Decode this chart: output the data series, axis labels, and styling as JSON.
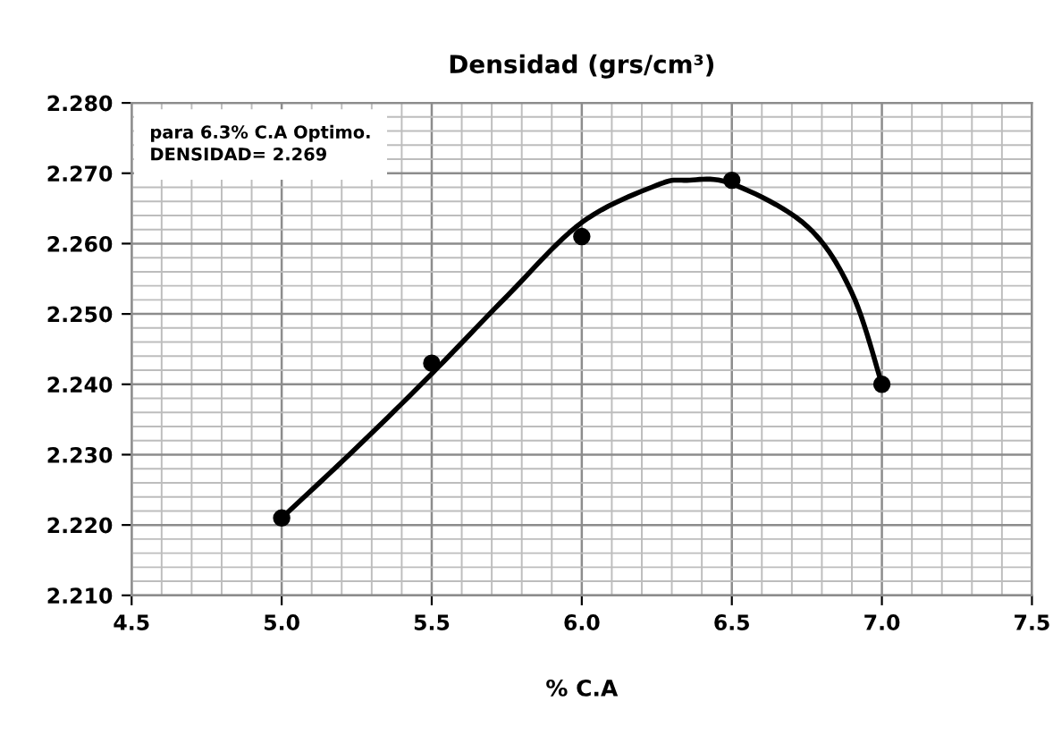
{
  "chart_data": {
    "type": "scatter",
    "title": "Densidad (grs/cm³)",
    "xlabel": "% C.A",
    "series": [
      {
        "color": "#000000",
        "marker": "circle",
        "x": [
          5.0,
          5.5,
          6.0,
          6.5,
          7.0
        ],
        "values": [
          2.221,
          2.243,
          2.261,
          2.269,
          2.24
        ]
      },
      {
        "type": "line",
        "color": "#000000",
        "marker": "none",
        "x": [
          5.0,
          5.25,
          5.5,
          5.75,
          6.0,
          6.25,
          6.35,
          6.5,
          6.75,
          6.9,
          7.0
        ],
        "values": [
          2.221,
          2.231,
          2.2415,
          2.2525,
          2.263,
          2.2683,
          2.269,
          2.2685,
          2.2625,
          2.253,
          2.24
        ]
      }
    ],
    "xlim": [
      4.5,
      7.5
    ],
    "xticks": [
      {
        "value": 4.5,
        "label": "4.5"
      },
      {
        "value": 5.0,
        "label": "5.0"
      },
      {
        "value": 5.5,
        "label": "5.5"
      },
      {
        "value": 6.0,
        "label": "6.0"
      },
      {
        "value": 6.5,
        "label": "6.5"
      },
      {
        "value": 7.0,
        "label": "7.0"
      },
      {
        "value": 7.5,
        "label": "7.5"
      }
    ],
    "ylim": [
      2.21,
      2.28
    ],
    "yticks": [
      {
        "value": 2.21,
        "label": "2.210"
      },
      {
        "value": 2.22,
        "label": "2.220"
      },
      {
        "value": 2.23,
        "label": "2.230"
      },
      {
        "value": 2.24,
        "label": "2.240"
      },
      {
        "value": 2.25,
        "label": "2.250"
      },
      {
        "value": 2.26,
        "label": "2.260"
      },
      {
        "value": 2.27,
        "label": "2.270"
      },
      {
        "value": 2.28,
        "label": "2.280"
      }
    ],
    "grid": true,
    "annotations": [
      "para 6.3% C.A Optimo.\nDENSIDAD= 2.269"
    ]
  }
}
